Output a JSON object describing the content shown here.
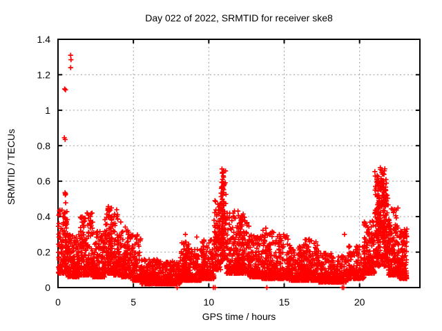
{
  "window": {
    "background": "#ffffff",
    "text_color": "#000000"
  },
  "chart_data": {
    "type": "scatter",
    "title": "Day 022 of 2022, SRMTID for receiver ske8",
    "xlabel": "GPS time / hours",
    "ylabel": "SRMTID / TECUs",
    "xlim": [
      0,
      24
    ],
    "ylim": [
      0,
      1.4
    ],
    "xticks": [
      0,
      5,
      10,
      15,
      20
    ],
    "xtick_labels": [
      "0",
      "5",
      "10",
      "15",
      "20"
    ],
    "yticks": [
      0,
      0.2,
      0.4,
      0.6,
      0.8,
      1,
      1.2,
      1.4
    ],
    "ytick_labels": [
      "0",
      "0.2",
      "0.4",
      "0.6",
      "0.8",
      "1",
      "1.2",
      "1.4"
    ],
    "grid": {
      "visible": true,
      "color": "#9c9c9c",
      "dash": "2 3.5",
      "width": 1
    },
    "border_color": "#000000",
    "legend": "none",
    "marker": {
      "symbol": "plus",
      "color": "#ff0000",
      "half_size": 3.6,
      "stroke_width": 1.7
    },
    "seed": 20220122,
    "segment_fields": [
      "t_start_hours",
      "t_end_hours",
      "count",
      "y_min_tecu",
      "y_max_tecu",
      "density_exponent"
    ],
    "distribution_segments": [
      [
        0.02,
        0.65,
        130,
        0.08,
        0.44,
        2.0
      ],
      [
        0.65,
        1.4,
        140,
        0.06,
        0.3,
        2.2
      ],
      [
        1.4,
        2.3,
        170,
        0.07,
        0.43,
        2.2
      ],
      [
        2.3,
        3.1,
        150,
        0.06,
        0.32,
        2.2
      ],
      [
        3.1,
        3.7,
        120,
        0.08,
        0.46,
        1.9
      ],
      [
        3.7,
        4.2,
        100,
        0.07,
        0.44,
        2.1
      ],
      [
        4.2,
        4.9,
        120,
        0.06,
        0.37,
        2.3
      ],
      [
        4.9,
        5.5,
        110,
        0.04,
        0.3,
        2.5
      ],
      [
        5.5,
        7.0,
        250,
        0.02,
        0.16,
        2.2
      ],
      [
        7.0,
        8.1,
        200,
        0.02,
        0.15,
        2.2
      ],
      [
        8.1,
        8.7,
        120,
        0.04,
        0.26,
        2.5
      ],
      [
        8.7,
        9.5,
        140,
        0.04,
        0.22,
        2.5
      ],
      [
        9.5,
        10.35,
        150,
        0.05,
        0.27,
        2.4
      ],
      [
        10.35,
        10.8,
        90,
        0.1,
        0.5,
        1.8
      ],
      [
        10.8,
        11.15,
        85,
        0.15,
        0.66,
        1.5
      ],
      [
        11.15,
        12.0,
        170,
        0.08,
        0.45,
        2.3
      ],
      [
        12.0,
        12.7,
        150,
        0.08,
        0.42,
        2.2
      ],
      [
        12.7,
        13.5,
        150,
        0.06,
        0.3,
        2.2
      ],
      [
        13.5,
        14.3,
        150,
        0.05,
        0.34,
        2.4
      ],
      [
        14.3,
        15.3,
        170,
        0.05,
        0.3,
        2.6
      ],
      [
        15.3,
        16.3,
        180,
        0.04,
        0.24,
        2.4
      ],
      [
        16.3,
        17.3,
        180,
        0.04,
        0.28,
        2.6
      ],
      [
        17.3,
        18.4,
        190,
        0.03,
        0.2,
        2.4
      ],
      [
        18.4,
        19.2,
        120,
        0.03,
        0.18,
        2.4
      ],
      [
        19.2,
        20.3,
        150,
        0.05,
        0.24,
        2.4
      ],
      [
        20.3,
        21.0,
        150,
        0.08,
        0.38,
        2.1
      ],
      [
        21.0,
        21.9,
        230,
        0.12,
        0.68,
        1.5
      ],
      [
        21.9,
        22.6,
        170,
        0.07,
        0.45,
        2.1
      ],
      [
        22.6,
        23.15,
        130,
        0.05,
        0.33,
        2.1
      ]
    ],
    "column_fields": [
      "t_hours",
      "y_min_tecu",
      "y_max_tecu",
      "count"
    ],
    "spike_columns": [
      [
        0.5,
        0.15,
        0.55,
        16
      ],
      [
        3.5,
        0.12,
        0.47,
        14
      ],
      [
        10.88,
        0.3,
        0.67,
        22
      ],
      [
        10.95,
        0.25,
        0.62,
        16
      ],
      [
        12.2,
        0.12,
        0.4,
        14
      ],
      [
        21.25,
        0.25,
        0.64,
        22
      ],
      [
        21.4,
        0.3,
        0.69,
        22
      ],
      [
        21.55,
        0.25,
        0.62,
        18
      ],
      [
        21.7,
        0.2,
        0.55,
        14
      ]
    ],
    "outlier_points": [
      [
        0.84,
        1.31
      ],
      [
        0.86,
        1.285
      ],
      [
        0.84,
        1.24
      ],
      [
        0.44,
        1.12
      ],
      [
        0.5,
        1.115
      ],
      [
        0.42,
        0.845
      ],
      [
        0.47,
        0.835
      ],
      [
        8.45,
        0.3
      ],
      [
        8.6,
        0.235
      ],
      [
        9.2,
        0.285
      ],
      [
        10.6,
        0.47
      ],
      [
        14.3,
        0.31
      ],
      [
        19.0,
        0.3
      ]
    ],
    "zero_value_times": [
      7.9,
      10.3,
      10.42,
      13.85,
      18.85,
      18.95
    ]
  }
}
